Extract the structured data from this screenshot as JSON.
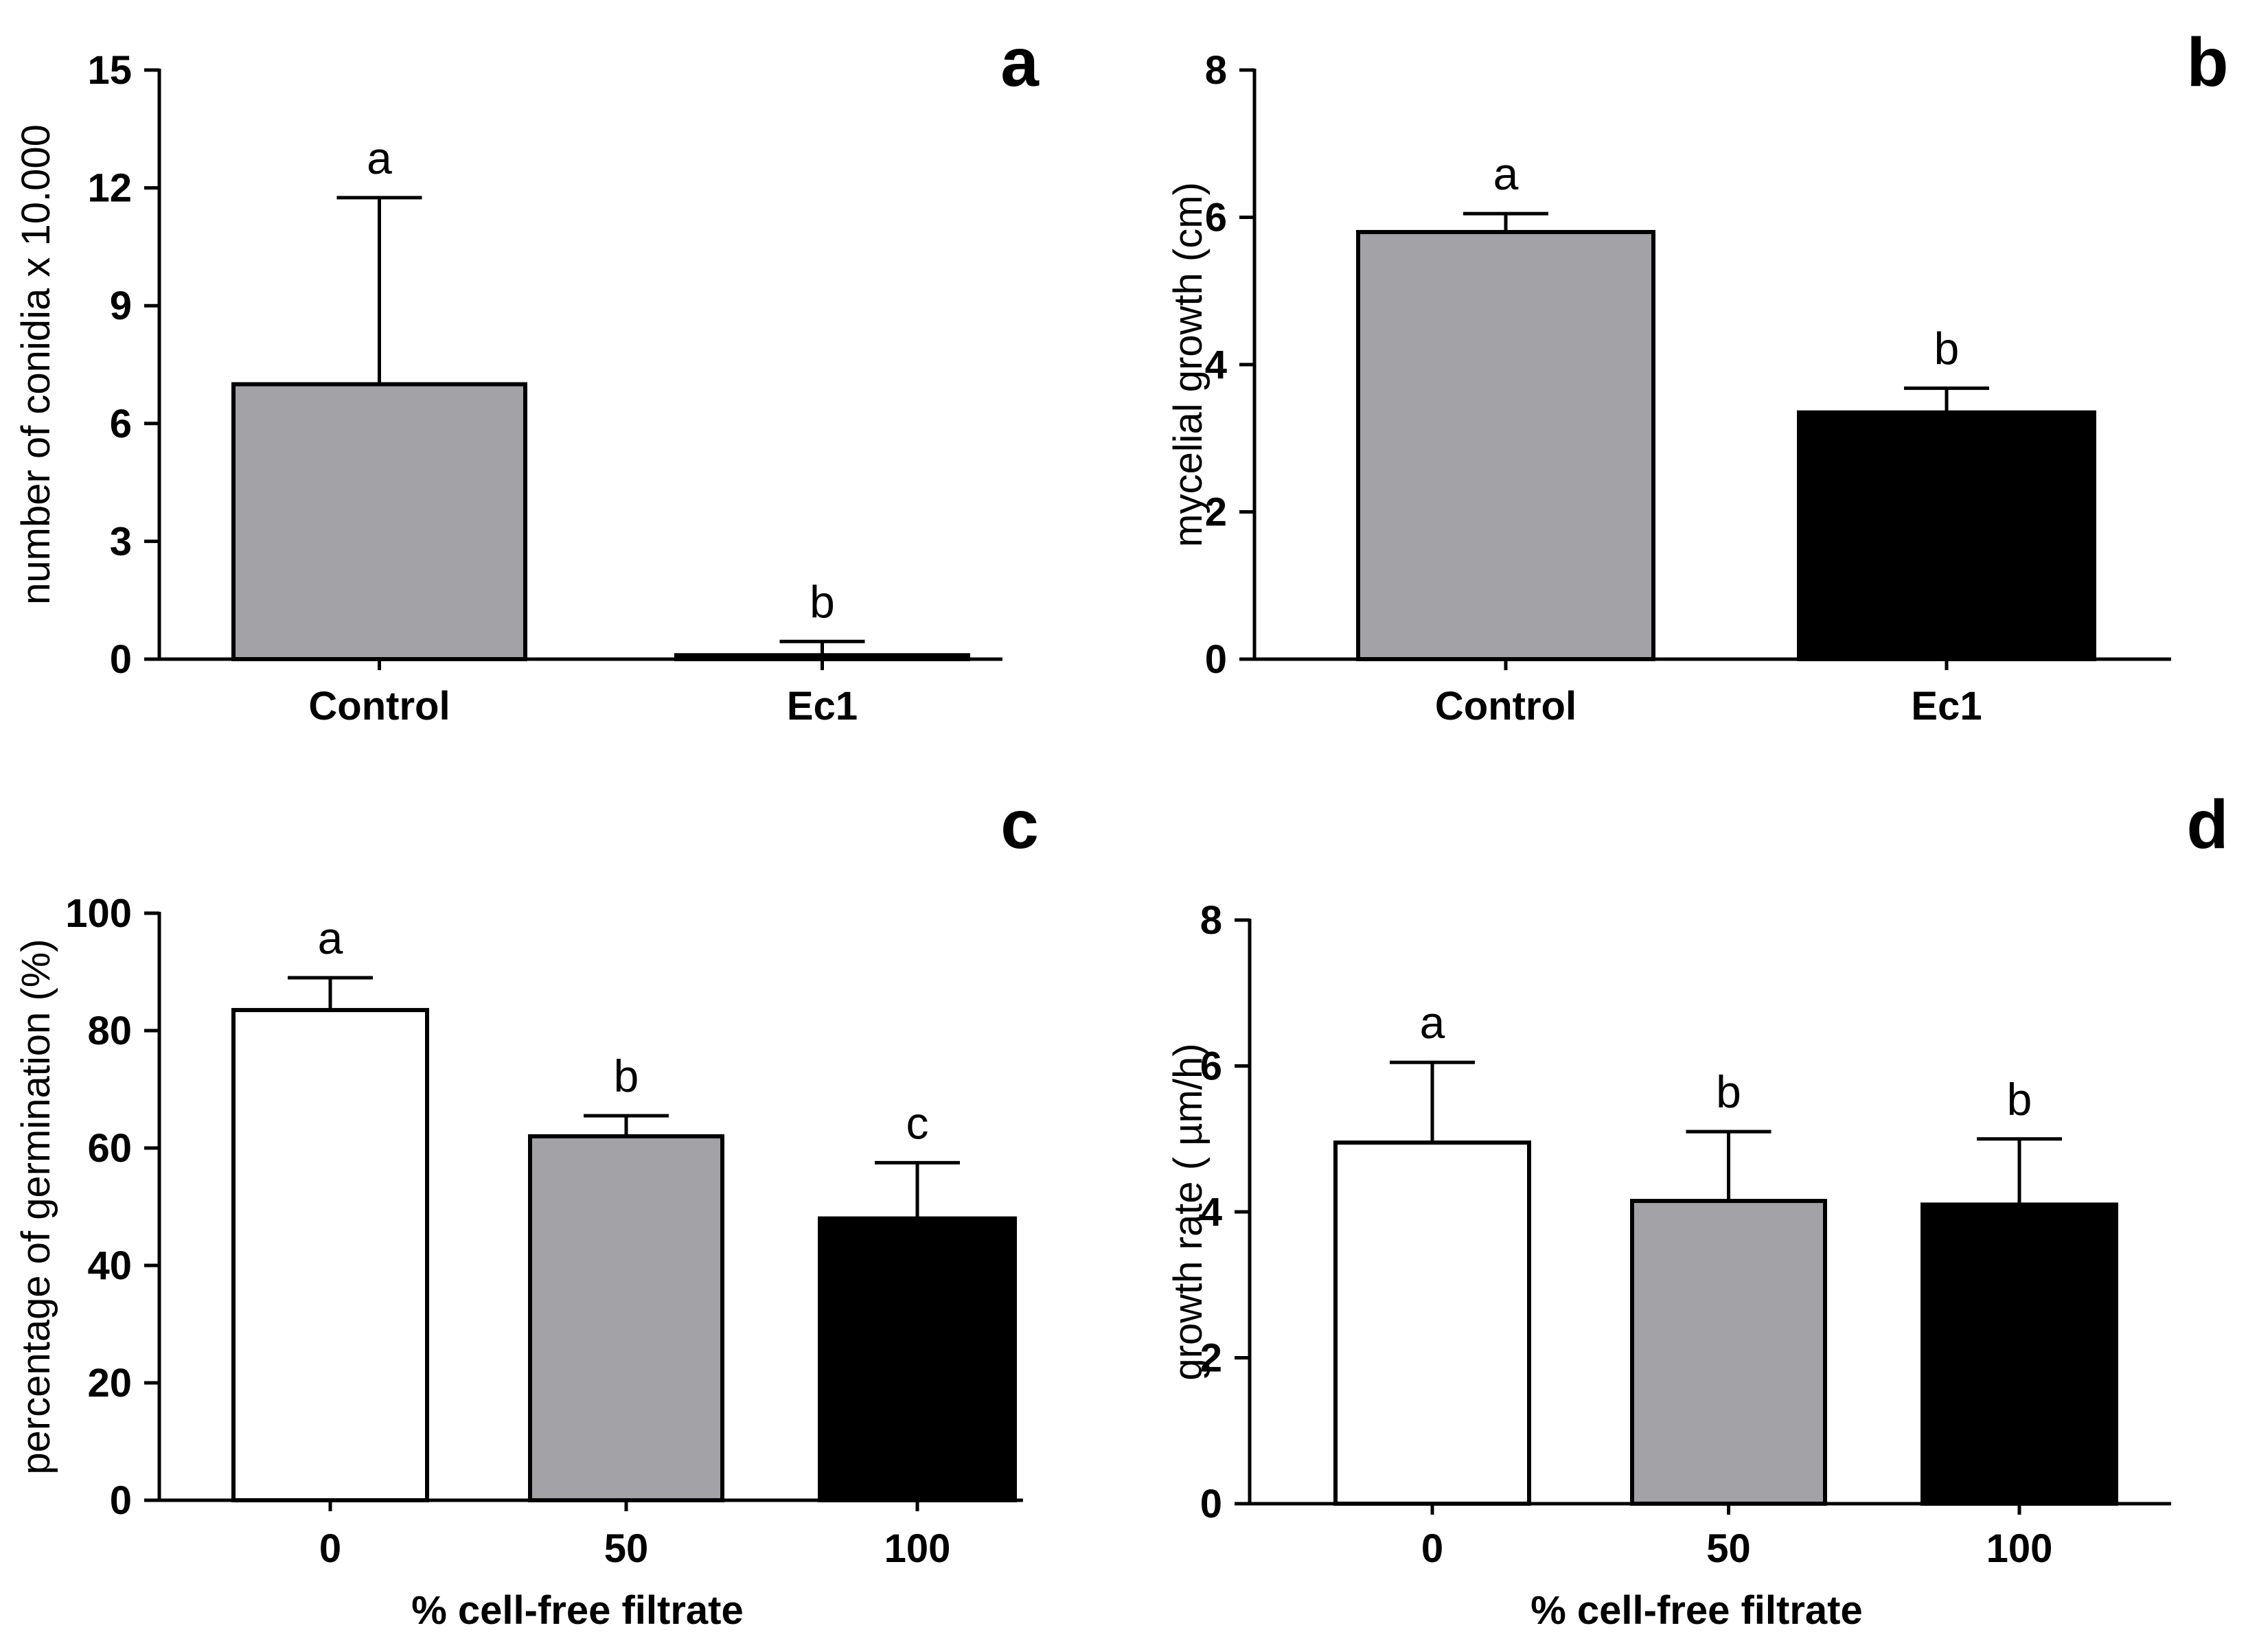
{
  "colors": {
    "white": "#ffffff",
    "gray": "#a3a2a6",
    "black": "#000000"
  },
  "chart_data": [
    {
      "id": "a",
      "type": "bar",
      "panel_label": "a",
      "ylabel": "number of conidia x 10.000",
      "xlabel": "",
      "ylim": [
        0,
        15
      ],
      "yticks": [
        0,
        3,
        6,
        9,
        12,
        15
      ],
      "categories": [
        "Control",
        "Ec1"
      ],
      "values": [
        7.0,
        0.1
      ],
      "errors": [
        4.75,
        0.35
      ],
      "significance": [
        "a",
        "b"
      ],
      "colors": [
        "#a3a2a6",
        "#000000"
      ]
    },
    {
      "id": "b",
      "type": "bar",
      "panel_label": "b",
      "ylabel": "mycelial growth (cm)",
      "xlabel": "",
      "ylim": [
        0,
        8
      ],
      "yticks": [
        0,
        2,
        4,
        6,
        8
      ],
      "categories": [
        "Control",
        "Ec1"
      ],
      "values": [
        5.8,
        3.35
      ],
      "errors": [
        0.25,
        0.33
      ],
      "significance": [
        "a",
        "b"
      ],
      "colors": [
        "#a3a2a6",
        "#000000"
      ]
    },
    {
      "id": "c",
      "type": "bar",
      "panel_label": "c",
      "ylabel": "percentage of germination (%)",
      "xlabel": "%  cell-free filtrate",
      "ylim": [
        0,
        100
      ],
      "yticks": [
        0,
        20,
        40,
        60,
        80,
        100
      ],
      "categories": [
        "0",
        "50",
        "100"
      ],
      "values": [
        83.5,
        62.0,
        48.0
      ],
      "errors": [
        5.5,
        3.5,
        9.5
      ],
      "significance": [
        "a",
        "b",
        "c"
      ],
      "colors": [
        "#ffffff",
        "#a3a2a6",
        "#000000"
      ]
    },
    {
      "id": "d",
      "type": "bar",
      "panel_label": "d",
      "ylabel": "growth rate ( µm/h)",
      "xlabel": "%  cell-free filtrate",
      "ylim": [
        0,
        8
      ],
      "yticks": [
        0,
        2,
        4,
        6,
        8
      ],
      "categories": [
        "0",
        "50",
        "100"
      ],
      "values": [
        4.95,
        4.15,
        4.1
      ],
      "errors": [
        1.1,
        0.95,
        0.9
      ],
      "significance": [
        "a",
        "b",
        "b"
      ],
      "colors": [
        "#ffffff",
        "#a3a2a6",
        "#000000"
      ]
    }
  ]
}
